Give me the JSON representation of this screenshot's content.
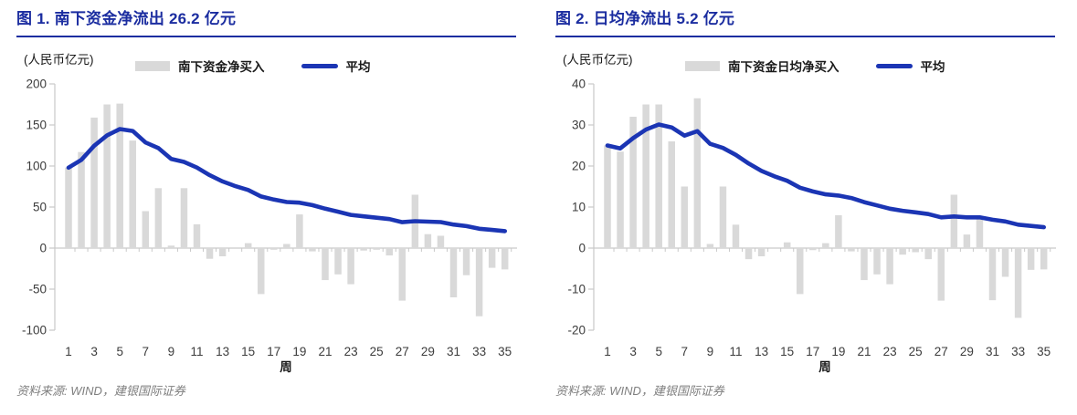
{
  "colors": {
    "title": "#1B2DA0",
    "line": "#1B35B4",
    "bar": "#D9D9D9",
    "axis": "#C9C9C9",
    "tick_text": "#3C3C3C",
    "source_text": "#7F7F7F"
  },
  "charts": [
    {
      "title": "图 1. 南下资金净流出 26.2 亿元",
      "unit_label": "(人民币亿元)",
      "legend": {
        "bar_label": "南下资金净买入",
        "line_label": "平均"
      },
      "source": "资料来源: WIND，建银国际证券",
      "chart_data": {
        "type": "bar+line",
        "x": [
          1,
          2,
          3,
          4,
          5,
          6,
          7,
          8,
          9,
          10,
          11,
          12,
          13,
          14,
          15,
          16,
          17,
          18,
          19,
          20,
          21,
          22,
          23,
          24,
          25,
          26,
          27,
          28,
          29,
          30,
          31,
          32,
          33,
          34,
          35
        ],
        "series": [
          {
            "name": "南下资金净买入",
            "type": "bar",
            "values": [
              98,
              117,
              159,
              175,
              176,
              131,
              45,
              73,
              3,
              73,
              29,
              -13,
              -10,
              0,
              6,
              -56,
              -2,
              5,
              41,
              -4,
              -39,
              -32,
              -44,
              -3,
              -2,
              -9,
              -64,
              65,
              17,
              15,
              -60,
              -33,
              -83,
              -24,
              -26
            ]
          },
          {
            "name": "平均",
            "type": "line",
            "values": [
              98.0,
              107.5,
              124.7,
              137.3,
              145.0,
              142.7,
              128.7,
              121.8,
              108.6,
              105.0,
              98.1,
              88.8,
              81.2,
              75.4,
              70.8,
              62.9,
              59.1,
              56.1,
              55.3,
              52.3,
              48.0,
              44.3,
              40.5,
              38.7,
              37.0,
              35.3,
              31.6,
              32.8,
              32.2,
              31.7,
              28.7,
              26.8,
              23.5,
              22.1,
              20.7
            ]
          }
        ],
        "ylim": [
          -100,
          200
        ],
        "yticks": [
          200,
          150,
          100,
          50,
          0,
          -50,
          -100
        ],
        "xticks": [
          1,
          3,
          5,
          7,
          9,
          11,
          13,
          15,
          17,
          19,
          21,
          23,
          25,
          27,
          29,
          31,
          33,
          35
        ],
        "xlabel": "周",
        "grid": false,
        "legend_position": "top"
      }
    },
    {
      "title": "图 2. 日均净流出 5.2 亿元",
      "unit_label": "(人民币亿元)",
      "legend": {
        "bar_label": "南下资金日均净买入",
        "line_label": "平均"
      },
      "source": "资料来源: WIND，建银国际证券",
      "chart_data": {
        "type": "bar+line",
        "x": [
          1,
          2,
          3,
          4,
          5,
          6,
          7,
          8,
          9,
          10,
          11,
          12,
          13,
          14,
          15,
          16,
          17,
          18,
          19,
          20,
          21,
          22,
          23,
          24,
          25,
          26,
          27,
          28,
          29,
          30,
          31,
          32,
          33,
          34,
          35
        ],
        "series": [
          {
            "name": "南下资金日均净买入",
            "type": "bar",
            "values": [
              25,
              23.5,
              32,
              35,
              35,
              26,
              15,
              36.5,
              1,
              15,
              5.7,
              -2.7,
              -2,
              0,
              1.4,
              -11.2,
              -0.5,
              1.2,
              8,
              -0.8,
              -7.8,
              -6.4,
              -8.8,
              -1.6,
              -1,
              -2.7,
              -12.8,
              13,
              3.3,
              7.8,
              -12.7,
              -7,
              -17,
              -5.3,
              -5.2
            ]
          },
          {
            "name": "平均",
            "type": "line",
            "values": [
              25.0,
              24.3,
              26.8,
              28.9,
              30.1,
              29.4,
              27.4,
              28.5,
              25.4,
              24.4,
              22.7,
              20.6,
              18.8,
              17.5,
              16.4,
              14.7,
              13.8,
              13.1,
              12.8,
              12.2,
              11.2,
              10.4,
              9.6,
              9.1,
              8.7,
              8.3,
              7.5,
              7.7,
              7.5,
              7.5,
              6.9,
              6.5,
              5.7,
              5.4,
              5.1
            ]
          }
        ],
        "ylim": [
          -20,
          40
        ],
        "yticks": [
          40,
          30,
          20,
          10,
          0,
          -10,
          -20
        ],
        "xticks": [
          1,
          3,
          5,
          7,
          9,
          11,
          13,
          15,
          17,
          19,
          21,
          23,
          25,
          27,
          29,
          31,
          33,
          35
        ],
        "xlabel": "周",
        "grid": false,
        "legend_position": "top"
      }
    }
  ]
}
